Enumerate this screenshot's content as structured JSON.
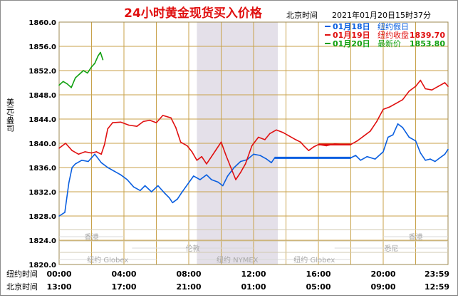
{
  "chart_data": {
    "type": "line",
    "title": "24小时黄金现货买入价格",
    "header_zone": "北京时间",
    "header_datetime": "2021年01月20日15时37分",
    "ylabel": "美元/盎司",
    "ylim": [
      1820,
      1860
    ],
    "yticks": [
      "1860.0",
      "1856.0",
      "1852.0",
      "1848.0",
      "1844.0",
      "1840.0",
      "1836.0",
      "1832.0",
      "1828.0",
      "1824.0",
      "1820.0"
    ],
    "grid": true,
    "legend_position": "top-right",
    "x_range_hours": [
      0,
      24
    ],
    "x_row1_label": "纽约时间",
    "x_row1_ticks": [
      "00:00",
      "04:00",
      "08:00",
      "12:00",
      "16:00",
      "20:00",
      "23:59"
    ],
    "x_row2_label": "北京时间",
    "x_row2_ticks": [
      "13:00",
      "17:00",
      "21:00",
      "01:00",
      "05:00",
      "09:00",
      "12:59"
    ],
    "shaded_hours": [
      8.5,
      13.5
    ],
    "markets_row1": [
      {
        "name": "香港",
        "start": 0,
        "end": 4
      },
      {
        "name": "香港",
        "start": 20,
        "end": 24
      }
    ],
    "markets_row2": [
      {
        "name": "伦敦",
        "start": 4.5,
        "end": 12
      },
      {
        "name": "悉尼",
        "start": 17,
        "end": 24
      }
    ],
    "markets_row3": [
      {
        "name": "纽约 Globex",
        "start": 0,
        "end": 6
      },
      {
        "name": "纽约 NYMEX",
        "start": 8.5,
        "end": 13.5
      },
      {
        "name": "纽约 Globex",
        "start": 13.5,
        "end": 18
      }
    ],
    "series": [
      {
        "name": "01月18日",
        "legend_text": "纽约假日",
        "value": "",
        "color": "#0a5fe0",
        "points": [
          [
            0,
            1828.0
          ],
          [
            0.35,
            1828.6
          ],
          [
            0.6,
            1833.5
          ],
          [
            0.8,
            1836.0
          ],
          [
            1.0,
            1836.6
          ],
          [
            1.4,
            1837.2
          ],
          [
            1.8,
            1837.0
          ],
          [
            2.2,
            1838.2
          ],
          [
            2.6,
            1836.8
          ],
          [
            3.0,
            1836.0
          ],
          [
            3.4,
            1835.4
          ],
          [
            3.8,
            1834.8
          ],
          [
            4.2,
            1834.0
          ],
          [
            4.6,
            1832.8
          ],
          [
            5.0,
            1832.2
          ],
          [
            5.3,
            1833.0
          ],
          [
            5.7,
            1832.0
          ],
          [
            6.1,
            1833.0
          ],
          [
            6.5,
            1831.8
          ],
          [
            6.8,
            1831.0
          ],
          [
            7.0,
            1830.2
          ],
          [
            7.3,
            1830.8
          ],
          [
            7.6,
            1832.0
          ],
          [
            8.0,
            1833.5
          ],
          [
            8.3,
            1834.6
          ],
          [
            8.7,
            1834.0
          ],
          [
            9.1,
            1834.8
          ],
          [
            9.4,
            1834.0
          ],
          [
            9.8,
            1833.6
          ],
          [
            10.1,
            1833.0
          ],
          [
            10.4,
            1834.6
          ],
          [
            10.8,
            1836.0
          ],
          [
            11.2,
            1837.0
          ],
          [
            11.6,
            1837.3
          ],
          [
            12.0,
            1838.2
          ],
          [
            12.4,
            1838.0
          ],
          [
            12.8,
            1837.4
          ],
          [
            13.1,
            1836.8
          ],
          [
            13.3,
            1837.6
          ],
          [
            13.6,
            1837.6
          ],
          [
            14.0,
            1837.6
          ],
          [
            15.0,
            1837.6
          ],
          [
            16.0,
            1837.6
          ],
          [
            17.0,
            1837.6
          ],
          [
            18.0,
            1837.6
          ],
          [
            18.3,
            1838.0
          ],
          [
            18.6,
            1837.2
          ],
          [
            19.0,
            1837.8
          ],
          [
            19.5,
            1837.4
          ],
          [
            20.0,
            1838.6
          ],
          [
            20.3,
            1841.0
          ],
          [
            20.6,
            1841.4
          ],
          [
            20.9,
            1843.2
          ],
          [
            21.2,
            1842.6
          ],
          [
            21.6,
            1841.0
          ],
          [
            22.0,
            1840.4
          ],
          [
            22.3,
            1838.4
          ],
          [
            22.6,
            1837.2
          ],
          [
            22.9,
            1837.4
          ],
          [
            23.2,
            1837.0
          ],
          [
            23.5,
            1837.6
          ],
          [
            23.8,
            1838.2
          ],
          [
            24.0,
            1839.0
          ]
        ]
      },
      {
        "name": "01月19日",
        "legend_text": "纽约收盘",
        "value": "1839.70",
        "color": "#e01010",
        "points": [
          [
            0,
            1839.2
          ],
          [
            0.4,
            1840.0
          ],
          [
            0.8,
            1838.8
          ],
          [
            1.2,
            1838.2
          ],
          [
            1.6,
            1838.6
          ],
          [
            2.0,
            1838.4
          ],
          [
            2.3,
            1838.6
          ],
          [
            2.6,
            1838.2
          ],
          [
            2.8,
            1839.8
          ],
          [
            3.0,
            1842.4
          ],
          [
            3.3,
            1843.4
          ],
          [
            3.8,
            1843.5
          ],
          [
            4.3,
            1843.0
          ],
          [
            4.8,
            1842.8
          ],
          [
            5.2,
            1843.6
          ],
          [
            5.6,
            1843.8
          ],
          [
            6.0,
            1843.4
          ],
          [
            6.4,
            1844.6
          ],
          [
            6.9,
            1844.2
          ],
          [
            7.2,
            1842.6
          ],
          [
            7.5,
            1840.2
          ],
          [
            7.9,
            1839.6
          ],
          [
            8.2,
            1838.6
          ],
          [
            8.5,
            1837.2
          ],
          [
            8.8,
            1837.8
          ],
          [
            9.1,
            1836.6
          ],
          [
            9.4,
            1837.8
          ],
          [
            9.7,
            1839.0
          ],
          [
            10.0,
            1840.2
          ],
          [
            10.3,
            1838.0
          ],
          [
            10.6,
            1836.0
          ],
          [
            10.9,
            1834.0
          ],
          [
            11.2,
            1835.2
          ],
          [
            11.5,
            1836.6
          ],
          [
            11.9,
            1839.6
          ],
          [
            12.3,
            1841.0
          ],
          [
            12.7,
            1840.6
          ],
          [
            13.0,
            1841.6
          ],
          [
            13.4,
            1842.2
          ],
          [
            13.8,
            1841.8
          ],
          [
            14.2,
            1841.2
          ],
          [
            14.6,
            1840.6
          ],
          [
            14.9,
            1840.2
          ],
          [
            15.1,
            1839.6
          ],
          [
            15.4,
            1838.8
          ],
          [
            15.7,
            1839.4
          ],
          [
            16.0,
            1839.8
          ],
          [
            16.5,
            1839.6
          ],
          [
            17.0,
            1839.9
          ],
          [
            17.6,
            1839.8
          ],
          [
            18.0,
            1839.8
          ],
          [
            18.4,
            1840.4
          ],
          [
            18.8,
            1841.2
          ],
          [
            19.2,
            1842.0
          ],
          [
            19.6,
            1843.6
          ],
          [
            20.0,
            1845.6
          ],
          [
            20.4,
            1846.0
          ],
          [
            20.8,
            1846.6
          ],
          [
            21.2,
            1847.2
          ],
          [
            21.6,
            1848.6
          ],
          [
            22.0,
            1849.4
          ],
          [
            22.3,
            1850.4
          ],
          [
            22.6,
            1849.0
          ],
          [
            23.0,
            1848.8
          ],
          [
            23.4,
            1849.4
          ],
          [
            23.8,
            1850.0
          ],
          [
            24.0,
            1849.4
          ]
        ]
      },
      {
        "name": "01月20日",
        "legend_text": "最新价",
        "value": "1853.80",
        "color": "#10a010",
        "points": [
          [
            0,
            1849.6
          ],
          [
            0.25,
            1850.2
          ],
          [
            0.5,
            1849.8
          ],
          [
            0.75,
            1849.2
          ],
          [
            1.0,
            1850.8
          ],
          [
            1.25,
            1851.4
          ],
          [
            1.5,
            1852.0
          ],
          [
            1.75,
            1851.6
          ],
          [
            2.0,
            1852.6
          ],
          [
            2.2,
            1853.2
          ],
          [
            2.4,
            1854.4
          ],
          [
            2.55,
            1855.0
          ],
          [
            2.7,
            1853.8
          ]
        ]
      }
    ]
  }
}
